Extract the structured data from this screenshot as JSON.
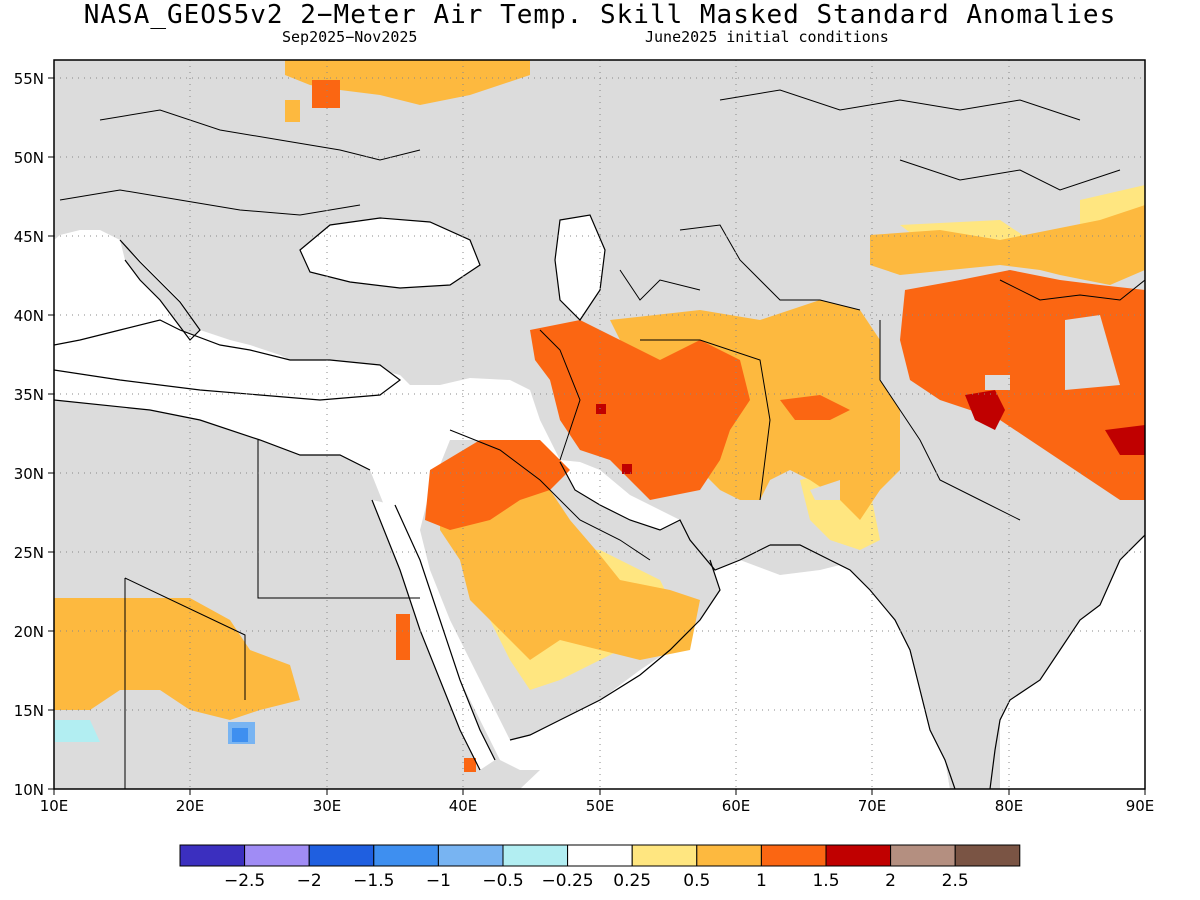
{
  "title": "NASA_GEOS5v2 2−Meter Air Temp. Skill Masked Standard Anomalies",
  "season": "Sep2025−Nov2025",
  "init": "June2025 initial conditions",
  "colors": {
    "land_masked": "#dcdcdc",
    "ocean": "#ffffff",
    "coast": "#000000"
  },
  "axes": {
    "lon_ticks": [
      "10E",
      "20E",
      "30E",
      "40E",
      "50E",
      "60E",
      "70E",
      "80E",
      "90E"
    ],
    "lat_ticks": [
      "10N",
      "15N",
      "20N",
      "25N",
      "30N",
      "35N",
      "40N",
      "45N",
      "50N",
      "55N"
    ],
    "lon_range": [
      10,
      90
    ],
    "lat_range": [
      10,
      56.2
    ]
  },
  "colorbar": {
    "bins": [
      {
        "color": "#3b2fbf"
      },
      {
        "color": "#a08cf5"
      },
      {
        "color": "#1f5fe0"
      },
      {
        "color": "#3e8ff0"
      },
      {
        "color": "#78b4f2"
      },
      {
        "color": "#b2eef2"
      },
      {
        "color": "#ffffff"
      },
      {
        "color": "#ffe680"
      },
      {
        "color": "#fdb93f"
      },
      {
        "color": "#fb6612"
      },
      {
        "color": "#c00000"
      },
      {
        "color": "#b48f80"
      },
      {
        "color": "#7a5444"
      }
    ],
    "labels": [
      "−2.5",
      "−2",
      "−1.5",
      "−1",
      "−0.5",
      "−0.25",
      "0.25",
      "0.5",
      "1",
      "1.5",
      "2",
      "2.5"
    ]
  },
  "anomaly_regions": [
    {
      "level": "0.5",
      "color": "#ffe680"
    },
    {
      "level": "1",
      "color": "#fdb93f"
    },
    {
      "level": "1.5",
      "color": "#fb6612"
    },
    {
      "level": "2",
      "color": "#c00000"
    },
    {
      "level": "-0.5",
      "color": "#78b4f2"
    },
    {
      "level": "-1",
      "color": "#3e8ff0"
    },
    {
      "level": "-0.25",
      "color": "#b2eef2"
    }
  ]
}
